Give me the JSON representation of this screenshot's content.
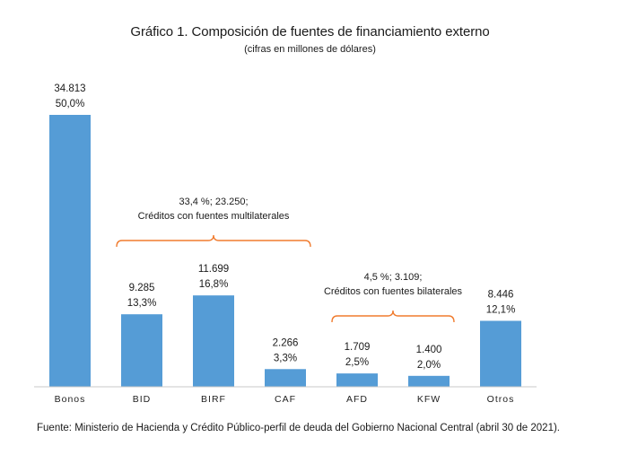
{
  "chart_data": {
    "type": "bar",
    "title": "Gráfico 1. Composición de fuentes de financiamiento externo",
    "subtitle": "(cifras en millones de dólares)",
    "categories": [
      "Bonos",
      "BID",
      "BIRF",
      "CAF",
      "AFD",
      "KFW",
      "Otros"
    ],
    "values": [
      34813,
      9285,
      11699,
      2266,
      1709,
      1400,
      8446
    ],
    "value_labels": [
      "34.813",
      "9.285",
      "11.699",
      "2.266",
      "1.709",
      "1.400",
      "8.446"
    ],
    "percent_labels": [
      "50,0%",
      "13,3%",
      "16,8%",
      "3,3%",
      "2,5%",
      "2,0%",
      "12,1%"
    ],
    "ylim": [
      0,
      35000
    ],
    "grid": false,
    "bar_color": "#559cd6",
    "annotations": [
      {
        "spans": [
          "BID",
          "CAF"
        ],
        "line1": "33,4 %; 23.250;",
        "line2": "Créditos con fuentes multilaterales",
        "color": "#f07b2e"
      },
      {
        "spans": [
          "AFD",
          "KFW"
        ],
        "line1": "4,5 %; 3.109;",
        "line2": "Créditos con fuentes bilaterales",
        "color": "#f07b2e"
      }
    ]
  },
  "source_note": "Fuente: Ministerio de Hacienda y Crédito Público-perfil de deuda del Gobierno Nacional Central (abril 30 de 2021)."
}
